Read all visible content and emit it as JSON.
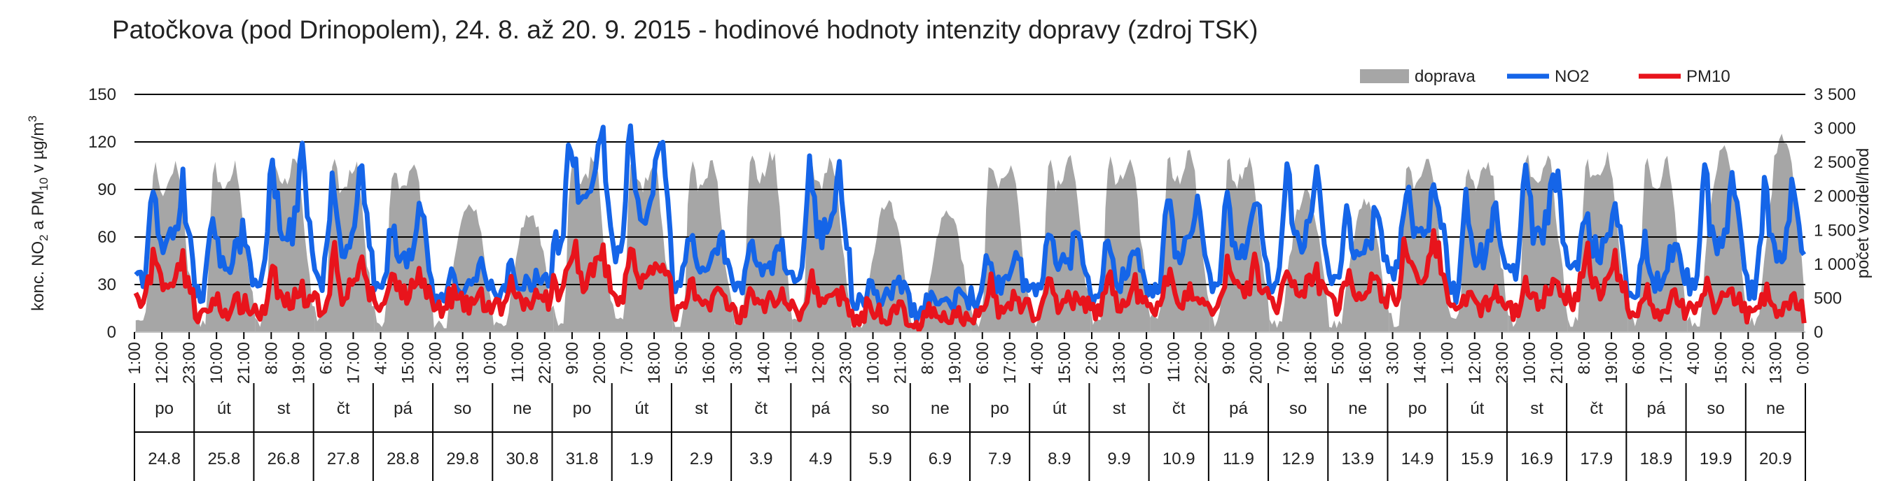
{
  "chart_data": {
    "type": "area+line",
    "title": "Patočkova (pod Drinopolem), 24. 8. až 20. 9. 2015 - hodinové hodnoty intenzity dopravy (zdroj TSK)",
    "ylabel_left": "konc. NO2 a PM10 v µg/m3",
    "ylabel_right": "počet vozidel/hod",
    "yleft_range": [
      0,
      150
    ],
    "yleft_ticks": [
      "0",
      "30",
      "60",
      "90",
      "120",
      "150"
    ],
    "yright_range": [
      0,
      3500
    ],
    "yright_ticks": [
      "0",
      "500",
      "1 000",
      "1 500",
      "2 000",
      "2 500",
      "3 000",
      "3 500"
    ],
    "grid": true,
    "legend_position": "top-right",
    "legend": [
      {
        "key": "doprava",
        "label": "doprava",
        "color": "#a6a6a6"
      },
      {
        "key": "no2",
        "label": "NO2",
        "color": "#1565e8"
      },
      {
        "key": "pm10",
        "label": "PM10",
        "color": "#e8141c"
      }
    ],
    "hour_tick_labels": [
      "1:00",
      "12:00",
      "23:00",
      "10:00",
      "21:00",
      "8:00",
      "19:00",
      "6:00",
      "17:00",
      "4:00",
      "15:00",
      "2:00",
      "13:00",
      "0:00",
      "11:00",
      "22:00",
      "9:00",
      "20:00",
      "7:00",
      "18:00",
      "5:00",
      "16:00",
      "3:00",
      "14:00",
      "1:00",
      "12:00",
      "23:00",
      "10:00",
      "21:00",
      "8:00",
      "19:00",
      "6:00",
      "17:00",
      "4:00",
      "15:00",
      "2:00",
      "13:00",
      "0:00",
      "11:00",
      "22:00",
      "9:00",
      "20:00",
      "7:00",
      "18:00",
      "5:00",
      "16:00",
      "3:00",
      "14:00",
      "1:00",
      "12:00",
      "23:00",
      "10:00",
      "21:00",
      "8:00",
      "19:00",
      "6:00",
      "17:00",
      "4:00",
      "15:00",
      "2:00",
      "13:00",
      "0:00"
    ],
    "days": [
      {
        "name": "po",
        "date": "24.8",
        "traffic_peak": 2450,
        "no2_base": 28,
        "no2_peak": 100,
        "pm10_base": 22,
        "pm10_peak": 55
      },
      {
        "name": "út",
        "date": "25.8",
        "traffic_peak": 2450,
        "no2_base": 22,
        "no2_peak": 70,
        "pm10_base": 12,
        "pm10_peak": 25
      },
      {
        "name": "st",
        "date": "26.8",
        "traffic_peak": 2500,
        "no2_base": 25,
        "no2_peak": 120,
        "pm10_base": 14,
        "pm10_peak": 38
      },
      {
        "name": "čt",
        "date": "27.8",
        "traffic_peak": 2500,
        "no2_base": 24,
        "no2_peak": 105,
        "pm10_base": 18,
        "pm10_peak": 52
      },
      {
        "name": "pá",
        "date": "28.8",
        "traffic_peak": 2450,
        "no2_base": 22,
        "no2_peak": 80,
        "pm10_base": 18,
        "pm10_peak": 48
      },
      {
        "name": "so",
        "date": "29.8",
        "traffic_peak": 1900,
        "no2_base": 20,
        "no2_peak": 45,
        "pm10_base": 18,
        "pm10_peak": 28
      },
      {
        "name": "ne",
        "date": "30.8",
        "traffic_peak": 1750,
        "no2_base": 22,
        "no2_peak": 42,
        "pm10_base": 20,
        "pm10_peak": 32
      },
      {
        "name": "po",
        "date": "31.8",
        "traffic_peak": 2550,
        "no2_base": 50,
        "no2_peak": 140,
        "pm10_base": 35,
        "pm10_peak": 62
      },
      {
        "name": "út",
        "date": "1.9",
        "traffic_peak": 2500,
        "no2_base": 40,
        "no2_peak": 133,
        "pm10_base": 30,
        "pm10_peak": 58
      },
      {
        "name": "st",
        "date": "2.9",
        "traffic_peak": 2550,
        "no2_base": 28,
        "no2_peak": 65,
        "pm10_base": 15,
        "pm10_peak": 32
      },
      {
        "name": "čt",
        "date": "3.9",
        "traffic_peak": 2600,
        "no2_base": 25,
        "no2_peak": 60,
        "pm10_base": 14,
        "pm10_peak": 30
      },
      {
        "name": "pá",
        "date": "4.9",
        "traffic_peak": 2500,
        "no2_base": 30,
        "no2_peak": 113,
        "pm10_base": 15,
        "pm10_peak": 35
      },
      {
        "name": "so",
        "date": "5.9",
        "traffic_peak": 1900,
        "no2_base": 18,
        "no2_peak": 30,
        "pm10_base": 10,
        "pm10_peak": 20
      },
      {
        "name": "ne",
        "date": "6.9",
        "traffic_peak": 1800,
        "no2_base": 12,
        "no2_peak": 22,
        "pm10_base": 6,
        "pm10_peak": 14
      },
      {
        "name": "po",
        "date": "7.9",
        "traffic_peak": 2500,
        "no2_base": 18,
        "no2_peak": 48,
        "pm10_base": 12,
        "pm10_peak": 30
      },
      {
        "name": "út",
        "date": "8.9",
        "traffic_peak": 2550,
        "no2_base": 22,
        "no2_peak": 70,
        "pm10_base": 14,
        "pm10_peak": 32
      },
      {
        "name": "st",
        "date": "9.9",
        "traffic_peak": 2600,
        "no2_base": 20,
        "no2_peak": 60,
        "pm10_base": 16,
        "pm10_peak": 35
      },
      {
        "name": "čt",
        "date": "10.9",
        "traffic_peak": 2600,
        "no2_base": 22,
        "no2_peak": 92,
        "pm10_base": 18,
        "pm10_peak": 38
      },
      {
        "name": "pá",
        "date": "11.9",
        "traffic_peak": 2550,
        "no2_base": 25,
        "no2_peak": 95,
        "pm10_base": 20,
        "pm10_peak": 52
      },
      {
        "name": "so",
        "date": "12.9",
        "traffic_peak": 2050,
        "no2_base": 22,
        "no2_peak": 107,
        "pm10_base": 20,
        "pm10_peak": 48
      },
      {
        "name": "ne",
        "date": "13.9",
        "traffic_peak": 1950,
        "no2_base": 25,
        "no2_peak": 85,
        "pm10_base": 22,
        "pm10_peak": 42
      },
      {
        "name": "po",
        "date": "14.9",
        "traffic_peak": 2550,
        "no2_base": 35,
        "no2_peak": 102,
        "pm10_base": 25,
        "pm10_peak": 68
      },
      {
        "name": "út",
        "date": "15.9",
        "traffic_peak": 2500,
        "no2_base": 20,
        "no2_peak": 87,
        "pm10_base": 12,
        "pm10_peak": 35
      },
      {
        "name": "st",
        "date": "16.9",
        "traffic_peak": 2550,
        "no2_base": 30,
        "no2_peak": 118,
        "pm10_base": 15,
        "pm10_peak": 40
      },
      {
        "name": "čt",
        "date": "17.9",
        "traffic_peak": 2600,
        "no2_base": 35,
        "no2_peak": 80,
        "pm10_base": 25,
        "pm10_peak": 55
      },
      {
        "name": "pá",
        "date": "18.9",
        "traffic_peak": 2500,
        "no2_base": 18,
        "no2_peak": 60,
        "pm10_base": 10,
        "pm10_peak": 30
      },
      {
        "name": "so",
        "date": "19.9",
        "traffic_peak": 2700,
        "no2_base": 22,
        "no2_peak": 115,
        "pm10_base": 15,
        "pm10_peak": 35
      },
      {
        "name": "ne",
        "date": "20.9",
        "traffic_peak": 2900,
        "no2_base": 20,
        "no2_peak": 100,
        "pm10_base": 12,
        "pm10_peak": 25
      }
    ]
  }
}
